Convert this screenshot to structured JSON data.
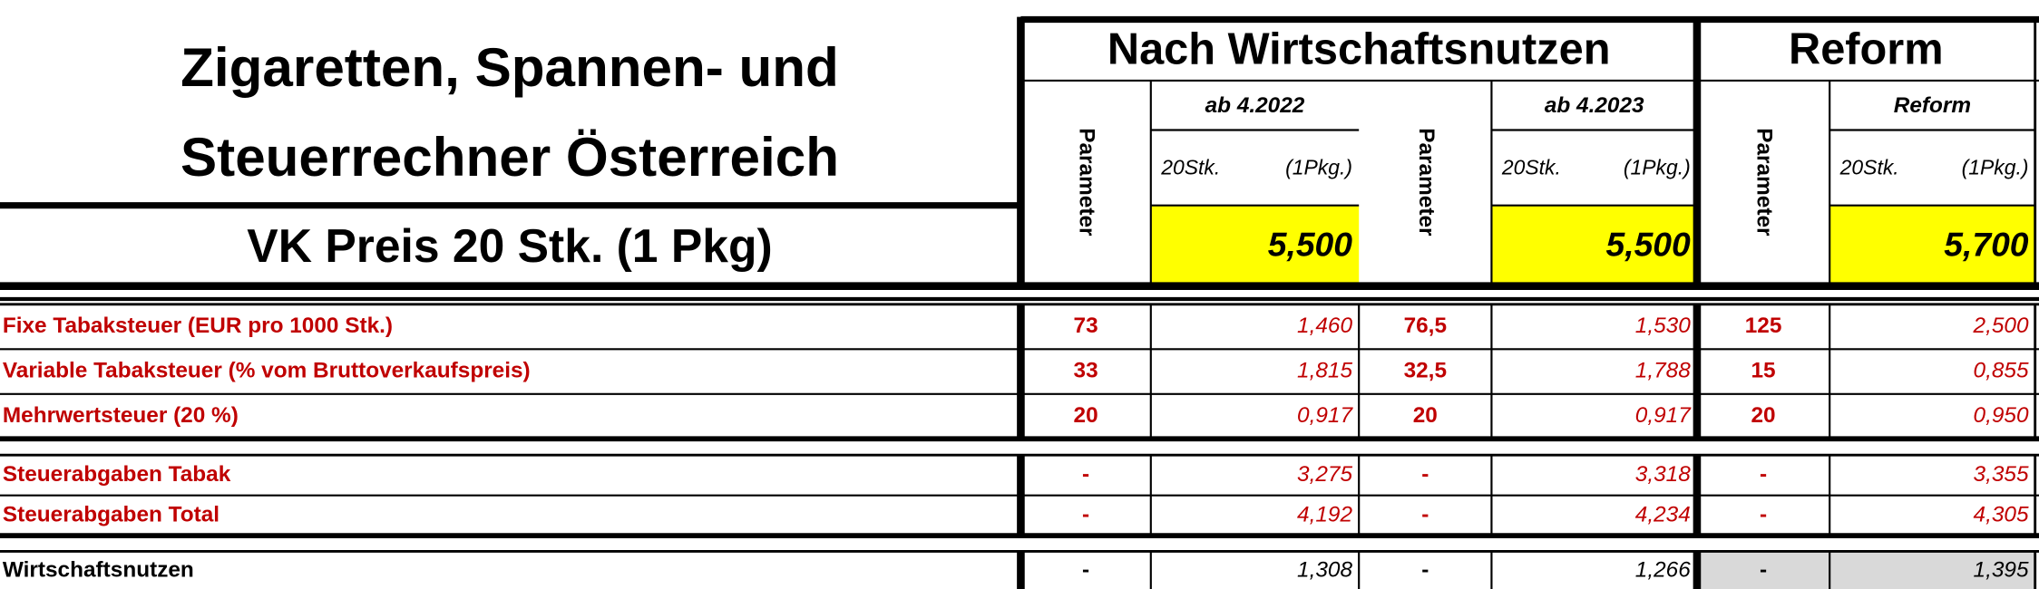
{
  "title": [
    "Zigaretten, Spannen- und",
    "Steuerrechner Österreich"
  ],
  "price_label": "VK Preis 20 Stk. (1 Pkg)",
  "groups": [
    "Nach Wirtschaftsnutzen",
    "Reform"
  ],
  "columns": [
    {
      "param_label": "Parameter",
      "period": "ab 4.2022",
      "unit": "20Stk.",
      "pack": "(1Pkg.)",
      "price": "5,500"
    },
    {
      "param_label": "Parameter",
      "period": "ab 4.2023",
      "unit": "20Stk.",
      "pack": "(1Pkg.)",
      "price": "5,500"
    },
    {
      "param_label": "Parameter",
      "period": "Reform",
      "unit": "20Stk.",
      "pack": "(1Pkg.)",
      "price": "5,700"
    }
  ],
  "sections": [
    [
      {
        "label": "Fixe Tabaksteuer (EUR pro 1000 Stk.)",
        "cells": [
          "73",
          "1,460",
          "76,5",
          "1,530",
          "125",
          "2,500"
        ]
      },
      {
        "label": "Variable Tabaksteuer (% vom Bruttoverkaufspreis)",
        "cells": [
          "33",
          "1,815",
          "32,5",
          "1,788",
          "15",
          "0,855"
        ]
      },
      {
        "label": "Mehrwertsteuer (20 %)",
        "cells": [
          "20",
          "0,917",
          "20",
          "0,917",
          "20",
          "0,950"
        ]
      }
    ],
    [
      {
        "label": "Steuerabgaben Tabak",
        "cells": [
          "-",
          "3,275",
          "-",
          "3,318",
          "-",
          "3,355"
        ]
      },
      {
        "label": "Steuerabgaben Total",
        "cells": [
          "-",
          "4,192",
          "-",
          "4,234",
          "-",
          "4,305"
        ]
      }
    ],
    [
      {
        "label": "Wirtschaftsnutzen",
        "cells": [
          "-",
          "1,308",
          "-",
          "1,266",
          "-",
          "1,395"
        ]
      }
    ]
  ]
}
